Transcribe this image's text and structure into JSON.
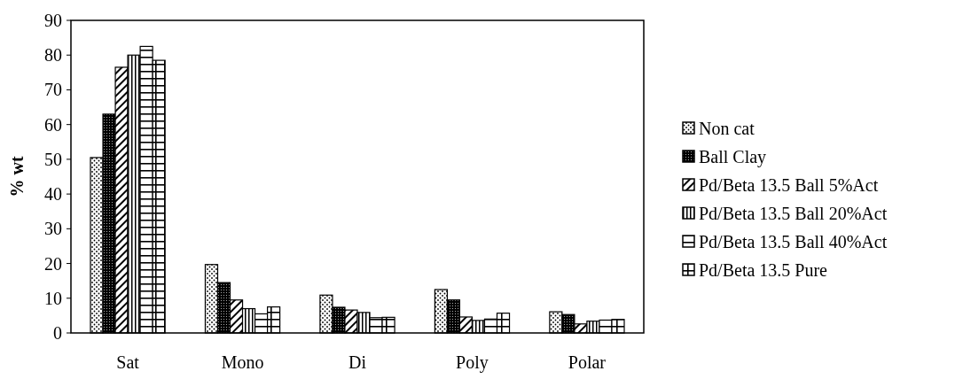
{
  "chart_data": {
    "type": "bar",
    "ylabel": "% wt",
    "categories": [
      "Sat",
      "Mono",
      "Di",
      "Poly",
      "Polar"
    ],
    "series": [
      {
        "name": "Non cat",
        "color": "#000000",
        "values": [
          50.5,
          19.7,
          10.9,
          12.5,
          6.1
        ]
      },
      {
        "name": "Ball Clay",
        "color": "#000000",
        "values": [
          63,
          14.5,
          7.4,
          9.5,
          5.3
        ]
      },
      {
        "name": "Pd/Beta 13.5 Ball 5%Act",
        "color": "#000000",
        "values": [
          76.5,
          9.5,
          6.6,
          4.6,
          2.6
        ]
      },
      {
        "name": "Pd/Beta 13.5 Ball 20%Act",
        "color": "#000000",
        "values": [
          80,
          7,
          5.9,
          3.6,
          3.4
        ]
      },
      {
        "name": "Pd/Beta 13.5 Ball 40%Act",
        "color": "#000000",
        "values": [
          82.5,
          5.5,
          4.4,
          4,
          3.7
        ]
      },
      {
        "name": "Pd/Beta 13.5 Pure",
        "color": "#000000",
        "values": [
          78.5,
          7.5,
          4.5,
          5.7,
          3.9
        ]
      }
    ],
    "ylim": [
      0,
      90
    ],
    "yticks": [
      0,
      10,
      20,
      30,
      40,
      50,
      60,
      70,
      80,
      90
    ],
    "grid": false,
    "legend": "right"
  }
}
